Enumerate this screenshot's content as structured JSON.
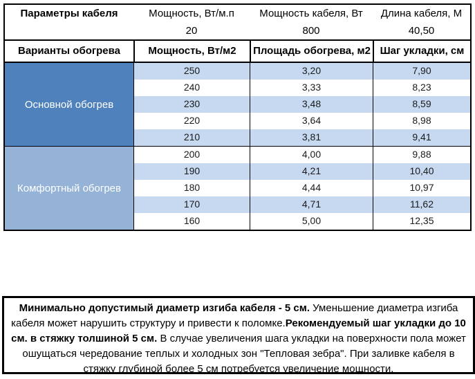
{
  "cable_params": {
    "columns": [
      "Параметры кабеля",
      "Мощность, Вт/м.п",
      "Мощность кабеля, Вт",
      "Длина кабеля, М"
    ],
    "values": [
      "",
      "20",
      "800",
      "40,50"
    ]
  },
  "heating_table": {
    "columns": [
      "Варианты обогрева",
      "Мощность, Вт/м2",
      "Площадь обогрева, м2",
      "Шаг укладки, см"
    ],
    "sections": [
      {
        "label": "Основной обогрев",
        "rows": [
          [
            "250",
            "3,20",
            "7,90"
          ],
          [
            "240",
            "3,33",
            "8,23"
          ],
          [
            "230",
            "3,48",
            "8,59"
          ],
          [
            "220",
            "3,64",
            "8,98"
          ],
          [
            "210",
            "3,81",
            "9,41"
          ]
        ]
      },
      {
        "label": "Комфортный обогрев",
        "rows": [
          [
            "200",
            "4,00",
            "9,88"
          ],
          [
            "190",
            "4,21",
            "10,40"
          ],
          [
            "180",
            "4,44",
            "10,97"
          ],
          [
            "170",
            "4,71",
            "11,62"
          ],
          [
            "160",
            "5,00",
            "12,35"
          ]
        ]
      }
    ]
  },
  "note": {
    "bold_1": "Минимально допустимый диаметр изгиба кабеля - 5 см.",
    "text_1": "  Уменьшение диаметра изгиба кабеля может нарушить структуру и привести к поломке.",
    "bold_2": "Рекомендуемый шаг укладки до 10 см. в стяжку толшиной 5 см.",
    "text_2": " В  случае увеличения шага укладки на поверхности пола может ошущаться чередование теплых и холодных зон \"Тепловая зебра\". При заливке кабеля в стяжку глубиной более 5 см потребуется увеличение мощности."
  },
  "colors": {
    "main_heating_bg": "#4f81bd",
    "comfort_heating_bg": "#95b3d7",
    "stripe_bg": "#c6d9f1",
    "border": "#000000"
  }
}
